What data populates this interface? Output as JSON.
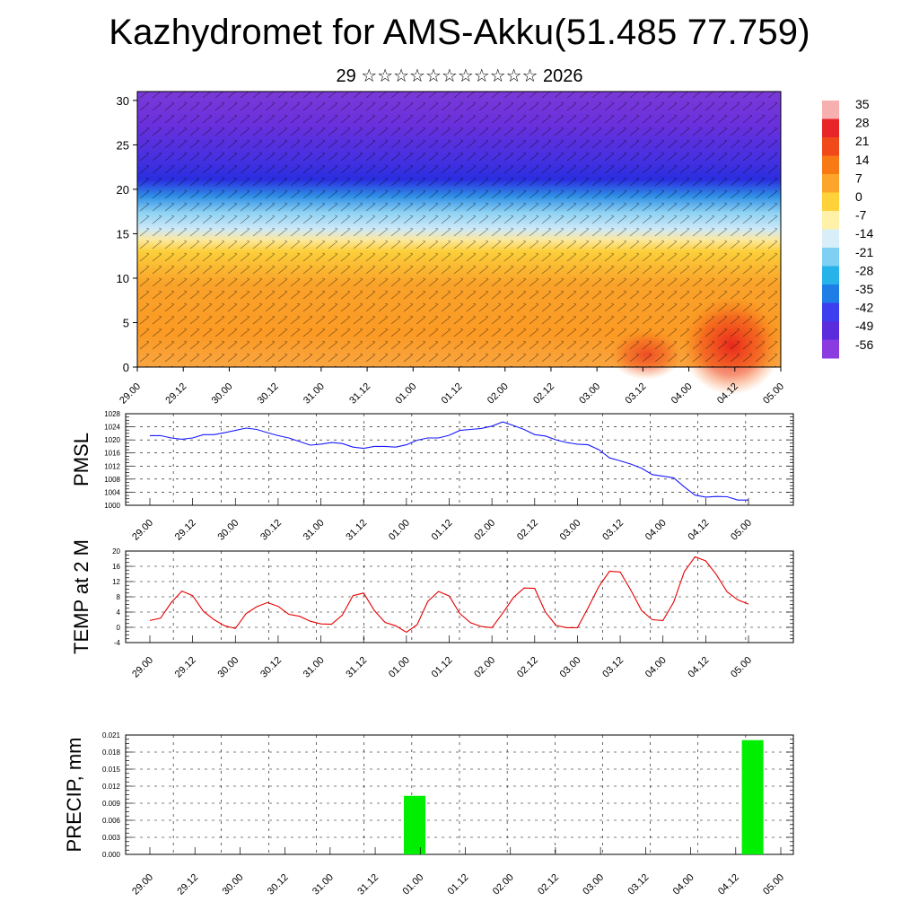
{
  "header": {
    "title": "Kazhydromet for AMS-Akku(51.485 77.759)",
    "subtitle": "29 ☆☆☆☆☆☆☆☆☆☆☆ 2026"
  },
  "colors": {
    "pmsl_line": "#1a1aff",
    "temp_line": "#e60000",
    "precip_bar": "#00ee00",
    "grid": "#000000"
  },
  "chart_data": [
    {
      "name": "cross-section",
      "type": "heatmap",
      "description_text": "",
      "x_tick_labels": [
        "29.00",
        "29.12",
        "30.00",
        "30.12",
        "31.00",
        "31.12",
        "01.00",
        "01.12",
        "02.00",
        "02.12",
        "03.00",
        "03.12",
        "04.00",
        "04.12",
        "05.00"
      ],
      "ylim": [
        0,
        31
      ],
      "y_ticks": [
        0,
        5,
        10,
        15,
        20,
        25,
        30
      ],
      "colorbar_labels": [
        "35",
        "28",
        "21",
        "14",
        "7",
        "0",
        "-7",
        "-14",
        "-21",
        "-28",
        "-35",
        "-42",
        "-49",
        "-56"
      ],
      "colorbar_colors": [
        "#f7b0b0",
        "#e8262a",
        "#f04a1a",
        "#f77a14",
        "#fca52a",
        "#ffd23a",
        "#fff2a8",
        "#d8eef8",
        "#7fd0f2",
        "#28b2ea",
        "#1e7ee6",
        "#3c3ef0",
        "#5a2cdc",
        "#8a3ce0"
      ]
    },
    {
      "name": "pmsl",
      "type": "line",
      "ylabel": "PMSL",
      "ylim": [
        1000,
        1028
      ],
      "y_tick_labels": [
        "1000",
        "1004",
        "1008",
        "1012",
        "1016",
        "1020",
        "1024",
        "1028"
      ],
      "x_tick_labels": [
        "29.00",
        "29.12",
        "30.00",
        "30.12",
        "31.00",
        "31.12",
        "01.00",
        "01.12",
        "02.00",
        "02.12",
        "03.00",
        "03.12",
        "04.00",
        "04.12",
        "05.00"
      ],
      "x": [
        0,
        1,
        2,
        3,
        4,
        5,
        6,
        7,
        8,
        9,
        10,
        11,
        12,
        13,
        14,
        15,
        16,
        17,
        18,
        19,
        20,
        21,
        22,
        23,
        24,
        25,
        26,
        27,
        28,
        29,
        30,
        31,
        32,
        33,
        34,
        35,
        36,
        37,
        38,
        39,
        40,
        41,
        42,
        43,
        44,
        45,
        46,
        47,
        48,
        49,
        50,
        51,
        52,
        53,
        54,
        55,
        56
      ],
      "values": [
        1021.3,
        1021.3,
        1020.6,
        1020.2,
        1020.6,
        1021.6,
        1021.6,
        1022.2,
        1022.9,
        1023.6,
        1023.2,
        1022.2,
        1021.3,
        1020.6,
        1019.5,
        1018.4,
        1018.7,
        1019.2,
        1018.9,
        1017.8,
        1017.4,
        1018.0,
        1018.0,
        1017.8,
        1018.5,
        1019.9,
        1020.6,
        1020.6,
        1021.4,
        1022.9,
        1023.2,
        1023.5,
        1024.2,
        1025.5,
        1024.4,
        1023.2,
        1021.6,
        1021.2,
        1020.0,
        1019.2,
        1018.7,
        1018.5,
        1017.0,
        1014.5,
        1013.6,
        1012.6,
        1011.3,
        1009.4,
        1008.9,
        1008.4,
        1005.6,
        1003.1,
        1002.5,
        1002.7,
        1002.6,
        1001.6,
        1001.6
      ]
    },
    {
      "name": "temp2m",
      "type": "line",
      "ylabel": "TEMP at 2 M",
      "ylim": [
        -4,
        20
      ],
      "y_tick_labels": [
        "-4",
        "0",
        "4",
        "8",
        "12",
        "16",
        "20"
      ],
      "x_tick_labels": [
        "29.00",
        "29.12",
        "30.00",
        "30.12",
        "31.00",
        "31.12",
        "01.00",
        "01.12",
        "02.00",
        "02.12",
        "03.00",
        "03.12",
        "04.00",
        "04.12",
        "05.00"
      ],
      "x": [
        0,
        1,
        2,
        3,
        4,
        5,
        6,
        7,
        8,
        9,
        10,
        11,
        12,
        13,
        14,
        15,
        16,
        17,
        18,
        19,
        20,
        21,
        22,
        23,
        24,
        25,
        26,
        27,
        28,
        29,
        30,
        31,
        32,
        33,
        34,
        35,
        36,
        37,
        38,
        39,
        40,
        41,
        42,
        43,
        44,
        45,
        46,
        47,
        48,
        49,
        50,
        51,
        52,
        53,
        54,
        55,
        56
      ],
      "values": [
        1.8,
        2.4,
        6.5,
        9.5,
        8.3,
        4.2,
        2.0,
        0.4,
        -0.3,
        3.6,
        5.4,
        6.5,
        5.5,
        3.4,
        2.9,
        1.6,
        0.9,
        0.8,
        3.2,
        8.3,
        9.0,
        4.4,
        1.3,
        0.4,
        -1.3,
        0.7,
        6.8,
        9.4,
        8.2,
        3.6,
        1.2,
        0.2,
        -0.1,
        3.7,
        7.8,
        10.3,
        10.2,
        4.0,
        0.5,
        -0.1,
        -0.1,
        5.1,
        10.7,
        14.7,
        14.5,
        9.7,
        4.4,
        2.0,
        1.8,
        6.6,
        14.6,
        18.5,
        17.4,
        13.8,
        9.3,
        7.2,
        6.1
      ]
    },
    {
      "name": "precip",
      "type": "bar",
      "ylabel": "PRECIP, mm",
      "ylim": [
        0,
        0.021
      ],
      "y_tick_labels": [
        "0.000",
        "0.003",
        "0.006",
        "0.009",
        "0.012",
        "0.015",
        "0.018",
        "0.021"
      ],
      "x_tick_labels": [
        "29.00",
        "29.12",
        "30.00",
        "30.12",
        "31.00",
        "31.12",
        "01.00",
        "01.12",
        "02.00",
        "02.12",
        "03.00",
        "03.12",
        "04.00",
        "04.12",
        "05.00"
      ],
      "bars": [
        {
          "x": 23.5,
          "value": 0.0103
        },
        {
          "x": 53.5,
          "value": 0.0201
        }
      ]
    }
  ]
}
